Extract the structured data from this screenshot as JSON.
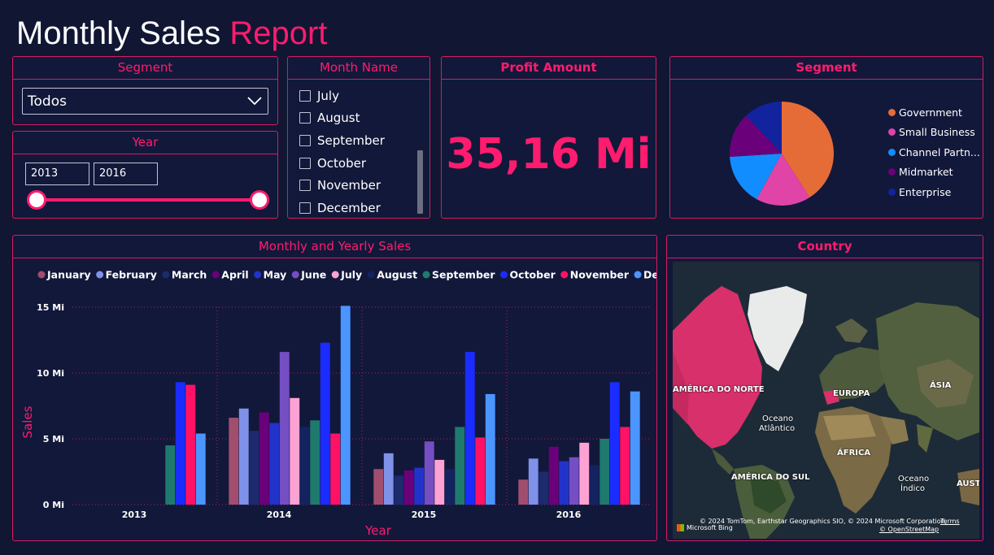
{
  "header": {
    "title_part1": "Monthly Sales",
    "title_part2": "Report"
  },
  "segment_filter": {
    "title": "Segment",
    "selected": "Todos"
  },
  "year_filter": {
    "title": "Year",
    "from": "2013",
    "to": "2016"
  },
  "month_filter": {
    "title": "Month Name",
    "items": [
      {
        "label": "July"
      },
      {
        "label": "August"
      },
      {
        "label": "September"
      },
      {
        "label": "October"
      },
      {
        "label": "November"
      },
      {
        "label": "December"
      }
    ]
  },
  "profit": {
    "title": "Profit Amount",
    "value": "35,16 Mi"
  },
  "segment_pie": {
    "title": "Segment",
    "legend": [
      {
        "label": "Government",
        "color": "#e66c37"
      },
      {
        "label": "Small Business",
        "color": "#e044a7"
      },
      {
        "label": "Channel Partn...",
        "color": "#118dff"
      },
      {
        "label": "Midmarket",
        "color": "#6b007b"
      },
      {
        "label": "Enterprise",
        "color": "#12239e"
      }
    ],
    "chart_data": {
      "type": "pie",
      "categories": [
        "Government",
        "Small Business",
        "Channel Partners",
        "Midmarket",
        "Enterprise"
      ],
      "values": [
        41,
        17,
        16,
        14,
        12
      ]
    }
  },
  "sales_chart": {
    "title": "Monthly and Yearly Sales",
    "chart_data": {
      "type": "bar",
      "categories": [
        "2013",
        "2014",
        "2015",
        "2016"
      ],
      "xlabel": "Year",
      "ylabel": "Sales",
      "ylim": [
        0,
        15
      ],
      "yticks": [
        "0 Mi",
        "5 Mi",
        "10 Mi",
        "15 Mi"
      ],
      "grid": true,
      "legend_position": "top",
      "series": [
        {
          "name": "January",
          "color": "#a14e6e",
          "values": [
            null,
            6.6,
            2.7,
            1.9
          ]
        },
        {
          "name": "February",
          "color": "#7f91e8",
          "values": [
            null,
            7.3,
            3.9,
            3.5
          ]
        },
        {
          "name": "March",
          "color": "#1c2a6e",
          "values": [
            null,
            5.6,
            2.2,
            2.5
          ]
        },
        {
          "name": "April",
          "color": "#6b007b",
          "values": [
            null,
            7.0,
            2.6,
            4.4
          ]
        },
        {
          "name": "May",
          "color": "#2233cc",
          "values": [
            null,
            6.2,
            2.8,
            3.3
          ]
        },
        {
          "name": "June",
          "color": "#744ec2",
          "values": [
            null,
            11.6,
            4.8,
            3.6
          ]
        },
        {
          "name": "July",
          "color": "#fea2d4",
          "values": [
            null,
            8.1,
            3.4,
            4.7
          ]
        },
        {
          "name": "August",
          "color": "#13235f",
          "values": [
            null,
            5.9,
            2.7,
            3.0
          ]
        },
        {
          "name": "September",
          "color": "#1f7a6e",
          "values": [
            4.5,
            6.4,
            5.9,
            5.0
          ]
        },
        {
          "name": "October",
          "color": "#1a2cff",
          "values": [
            9.3,
            12.3,
            11.6,
            9.3
          ]
        },
        {
          "name": "November",
          "color": "#ff1266",
          "values": [
            9.1,
            5.4,
            5.1,
            5.9
          ]
        },
        {
          "name": "December",
          "color": "#4b95ff",
          "values": [
            5.4,
            15.1,
            8.4,
            8.6
          ]
        }
      ]
    }
  },
  "country_map": {
    "title": "Country",
    "labels": {
      "na": "AMÉRICA DO NORTE",
      "europe": "EUROPA",
      "asia": "ÁSIA",
      "ocean_atl_1": "Oceano",
      "ocean_atl_2": "Atlântico",
      "africa": "ÁFRICA",
      "sa": "AMÉRICA DO SUL",
      "ocean_ind_1": "Oceano",
      "ocean_ind_2": "Índico",
      "aust": "AUST"
    },
    "attribution": "© 2024 TomTom, Earthstar Geographics SIO, © 2024 Microsoft Corporation,",
    "terms": "Terms",
    "osm": "© OpenStreetMap",
    "bing": "Microsoft Bing"
  }
}
